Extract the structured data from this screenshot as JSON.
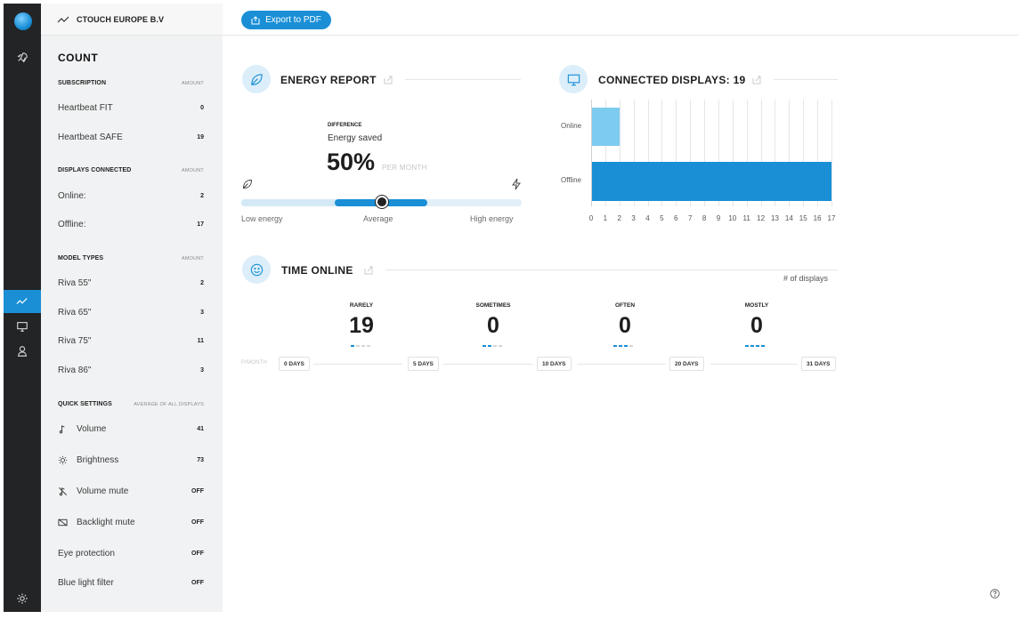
{
  "company": "CTOUCH EUROPE B.V",
  "toolbar": {
    "export_label": "Export to PDF"
  },
  "left_panel": {
    "title": "COUNT",
    "subscription": {
      "heading": "SUBSCRIPTION",
      "amount_label": "AMOUNT",
      "items": [
        {
          "label": "Heartbeat FIT",
          "value": "0"
        },
        {
          "label": "Heartbeat SAFE",
          "value": "19"
        }
      ]
    },
    "displays": {
      "heading": "DISPLAYS CONNECTED",
      "amount_label": "AMOUNT",
      "items": [
        {
          "label": "Online:",
          "value": "2"
        },
        {
          "label": "Offline:",
          "value": "17"
        }
      ]
    },
    "models": {
      "heading": "MODEL TYPES",
      "amount_label": "AMOUNT",
      "items": [
        {
          "label": "Riva 55\"",
          "value": "2"
        },
        {
          "label": "Riva 65\"",
          "value": "3"
        },
        {
          "label": "Riva 75\"",
          "value": "11"
        },
        {
          "label": "Riva 86\"",
          "value": "3"
        }
      ]
    },
    "quick": {
      "heading": "QUICK SETTINGS",
      "amount_label": "AVERAGE OF ALL DISPLAYS",
      "items": [
        {
          "label": "Volume",
          "value": "41"
        },
        {
          "label": "Brightness",
          "value": "73"
        },
        {
          "label": "Volume mute",
          "value": "OFF"
        },
        {
          "label": "Backlight mute",
          "value": "OFF"
        },
        {
          "label": "Eye protection",
          "value": "OFF"
        },
        {
          "label": "Blue light filter",
          "value": "OFF"
        }
      ]
    }
  },
  "energy": {
    "title": "ENERGY REPORT",
    "difference_label": "DIFFERENCE",
    "saved_label": "Energy saved",
    "percent": "50%",
    "per_month": "PER MONTH",
    "scale": {
      "low": "Low energy",
      "mid": "Average",
      "high": "High energy"
    },
    "indicator_fraction": 0.5
  },
  "connected": {
    "title": "CONNECTED DISPLAYS: 19",
    "chart_data": {
      "type": "bar",
      "orientation": "horizontal",
      "title": "CONNECTED DISPLAYS: 19",
      "categories": [
        "Online",
        "Offline"
      ],
      "values": [
        2,
        17
      ],
      "xlim": [
        0,
        17
      ],
      "ticks": [
        0,
        1,
        2,
        3,
        4,
        5,
        6,
        7,
        8,
        9,
        10,
        11,
        12,
        13,
        14,
        15,
        16,
        17
      ],
      "colors": [
        "#7ecbf0",
        "#1a8fd6"
      ],
      "grid": true
    }
  },
  "time_online": {
    "title": "TIME ONLINE",
    "unit_label": "# of displays",
    "per_month": "P/MONTH",
    "counters": [
      {
        "label": "RARELY",
        "value": "19",
        "level": 1
      },
      {
        "label": "SOMETIMES",
        "value": "0",
        "level": 2
      },
      {
        "label": "OFTEN",
        "value": "0",
        "level": 3
      },
      {
        "label": "MOSTLY",
        "value": "0",
        "level": 4
      }
    ],
    "days": [
      "0 DAYS",
      "5 DAYS",
      "10 DAYS",
      "20 DAYS",
      "31 DAYS"
    ]
  },
  "colors": {
    "accent": "#1a8fd6",
    "accent_light": "#7ecbf0",
    "rail": "#222426"
  }
}
